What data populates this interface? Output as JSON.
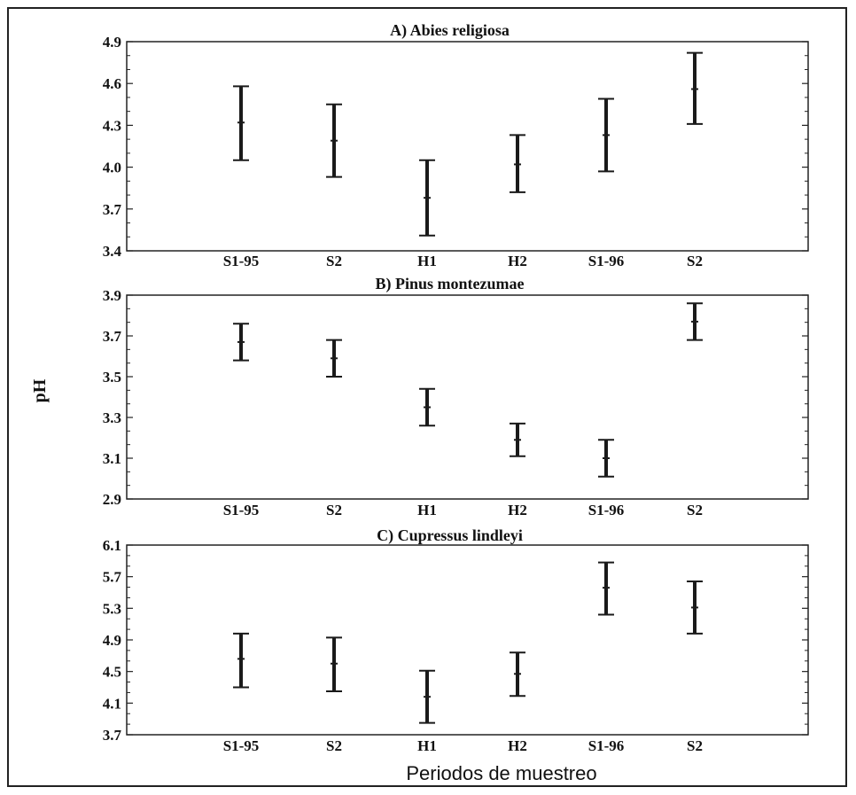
{
  "figure": {
    "ylabel": "pH",
    "xlabel": "Periodos de muestreo",
    "frame_color": "#222222",
    "mark_color": "#1a1a1a"
  },
  "chart_data": [
    {
      "type": "errorbar",
      "title": "A)  Abies religiosa",
      "categories": [
        "S1-95",
        "S2",
        "H1",
        "H2",
        "S1-96",
        "S2"
      ],
      "ylim": [
        3.4,
        4.9
      ],
      "yticks": [
        "3.4",
        "3.7",
        "4.0",
        "4.3",
        "4.6",
        "4.9"
      ],
      "series": [
        {
          "mean": [
            4.32,
            4.19,
            3.78,
            4.02,
            4.23,
            4.56
          ],
          "low": [
            4.05,
            3.93,
            3.51,
            3.82,
            3.97,
            4.31
          ],
          "high": [
            4.58,
            4.45,
            4.05,
            4.23,
            4.49,
            4.82
          ]
        }
      ],
      "grid": false
    },
    {
      "type": "errorbar",
      "title": "B) Pinus montezumae",
      "categories": [
        "S1-95",
        "S2",
        "H1",
        "H2",
        "S1-96",
        "S2"
      ],
      "ylim": [
        2.9,
        3.9
      ],
      "yticks": [
        "2.9",
        "3.1",
        "3.3",
        "3.5",
        "3.7",
        "3.9"
      ],
      "series": [
        {
          "mean": [
            3.67,
            3.59,
            3.35,
            3.19,
            3.1,
            3.77
          ],
          "low": [
            3.58,
            3.5,
            3.26,
            3.11,
            3.01,
            3.68
          ],
          "high": [
            3.76,
            3.68,
            3.44,
            3.27,
            3.19,
            3.86
          ]
        }
      ],
      "grid": false
    },
    {
      "type": "errorbar",
      "title": "C) Cupressus lindleyi",
      "categories": [
        "S1-95",
        "S2",
        "H1",
        "H2",
        "S1-96",
        "S2"
      ],
      "ylim": [
        3.7,
        6.1
      ],
      "yticks": [
        "3.7",
        "4.1",
        "4.5",
        "4.9",
        "5.3",
        "5.7",
        "6.1"
      ],
      "series": [
        {
          "mean": [
            4.66,
            4.6,
            4.18,
            4.47,
            5.56,
            5.31
          ],
          "low": [
            4.3,
            4.25,
            3.85,
            4.19,
            5.22,
            4.98
          ],
          "high": [
            4.98,
            4.93,
            4.51,
            4.74,
            5.88,
            5.64
          ]
        }
      ],
      "grid": false
    }
  ]
}
